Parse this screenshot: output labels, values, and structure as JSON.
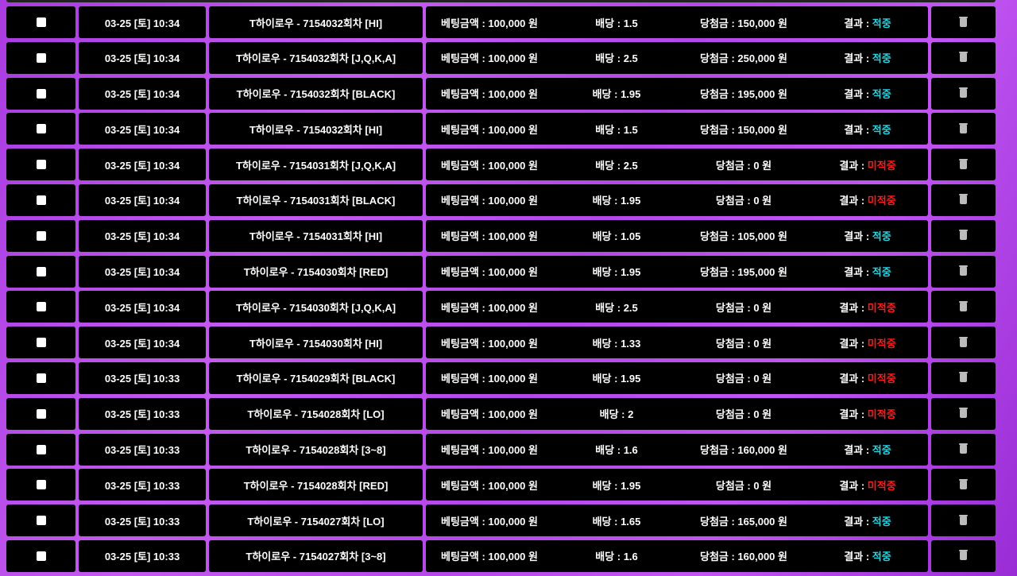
{
  "labels": {
    "bet": "베팅금액 : ",
    "odds": "배당 : ",
    "win": "당첨금 : ",
    "result": "결과 : ",
    "won": " 원"
  },
  "colors": {
    "hit": "#22d3e0",
    "miss": "#ff1a1a"
  },
  "rows": [
    {
      "date": "03-25 [토] 10:34",
      "game": "T하이로우 - 7154032회차 [HI]",
      "bet": "100,000",
      "odds": "1.5",
      "win": "150,000",
      "result": "적중"
    },
    {
      "date": "03-25 [토] 10:34",
      "game": "T하이로우 - 7154032회차 [J,Q,K,A]",
      "bet": "100,000",
      "odds": "2.5",
      "win": "250,000",
      "result": "적중"
    },
    {
      "date": "03-25 [토] 10:34",
      "game": "T하이로우 - 7154032회차 [BLACK]",
      "bet": "100,000",
      "odds": "1.95",
      "win": "195,000",
      "result": "적중"
    },
    {
      "date": "03-25 [토] 10:34",
      "game": "T하이로우 - 7154032회차 [HI]",
      "bet": "100,000",
      "odds": "1.5",
      "win": "150,000",
      "result": "적중"
    },
    {
      "date": "03-25 [토] 10:34",
      "game": "T하이로우 - 7154031회차 [J,Q,K,A]",
      "bet": "100,000",
      "odds": "2.5",
      "win": "0",
      "result": "미적중"
    },
    {
      "date": "03-25 [토] 10:34",
      "game": "T하이로우 - 7154031회차 [BLACK]",
      "bet": "100,000",
      "odds": "1.95",
      "win": "0",
      "result": "미적중"
    },
    {
      "date": "03-25 [토] 10:34",
      "game": "T하이로우 - 7154031회차 [HI]",
      "bet": "100,000",
      "odds": "1.05",
      "win": "105,000",
      "result": "적중"
    },
    {
      "date": "03-25 [토] 10:34",
      "game": "T하이로우 - 7154030회차 [RED]",
      "bet": "100,000",
      "odds": "1.95",
      "win": "195,000",
      "result": "적중"
    },
    {
      "date": "03-25 [토] 10:34",
      "game": "T하이로우 - 7154030회차 [J,Q,K,A]",
      "bet": "100,000",
      "odds": "2.5",
      "win": "0",
      "result": "미적중"
    },
    {
      "date": "03-25 [토] 10:34",
      "game": "T하이로우 - 7154030회차 [HI]",
      "bet": "100,000",
      "odds": "1.33",
      "win": "0",
      "result": "미적중"
    },
    {
      "date": "03-25 [토] 10:33",
      "game": "T하이로우 - 7154029회차 [BLACK]",
      "bet": "100,000",
      "odds": "1.95",
      "win": "0",
      "result": "미적중"
    },
    {
      "date": "03-25 [토] 10:33",
      "game": "T하이로우 - 7154028회차 [LO]",
      "bet": "100,000",
      "odds": "2",
      "win": "0",
      "result": "미적중"
    },
    {
      "date": "03-25 [토] 10:33",
      "game": "T하이로우 - 7154028회차 [3~8]",
      "bet": "100,000",
      "odds": "1.6",
      "win": "160,000",
      "result": "적중"
    },
    {
      "date": "03-25 [토] 10:33",
      "game": "T하이로우 - 7154028회차 [RED]",
      "bet": "100,000",
      "odds": "1.95",
      "win": "0",
      "result": "미적중"
    },
    {
      "date": "03-25 [토] 10:33",
      "game": "T하이로우 - 7154027회차 [LO]",
      "bet": "100,000",
      "odds": "1.65",
      "win": "165,000",
      "result": "적중"
    },
    {
      "date": "03-25 [토] 10:33",
      "game": "T하이로우 - 7154027회차 [3~8]",
      "bet": "100,000",
      "odds": "1.6",
      "win": "160,000",
      "result": "적중"
    }
  ]
}
